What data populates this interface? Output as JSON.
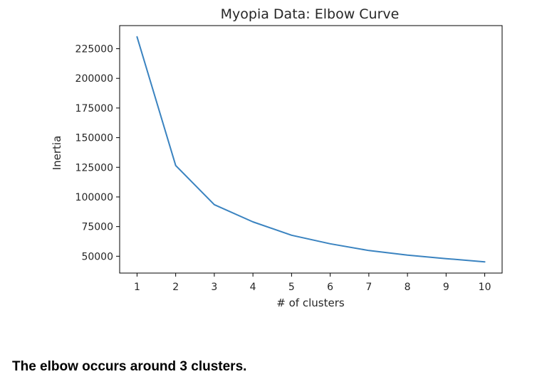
{
  "chart_data": {
    "type": "line",
    "title": "Myopia Data: Elbow Curve",
    "xlabel": "# of clusters",
    "ylabel": "Inertia",
    "x": [
      1,
      2,
      3,
      4,
      5,
      6,
      7,
      8,
      9,
      10
    ],
    "series": [
      {
        "values": [
          235000,
          126500,
          93500,
          79000,
          67700,
          60500,
          54800,
          51000,
          48000,
          45300
        ]
      }
    ],
    "xticks": [
      "1",
      "2",
      "3",
      "4",
      "5",
      "6",
      "7",
      "8",
      "9",
      "10"
    ],
    "yticks": [
      "50000",
      "75000",
      "100000",
      "125000",
      "150000",
      "175000",
      "200000",
      "225000"
    ],
    "xlim": [
      0.55,
      10.45
    ],
    "ylim": [
      35800,
      244500
    ],
    "grid": false,
    "colors": {
      "line": "#3a83c0",
      "axes": "#000000",
      "text": "#262626"
    }
  },
  "note": "The elbow occurs around 3 clusters."
}
